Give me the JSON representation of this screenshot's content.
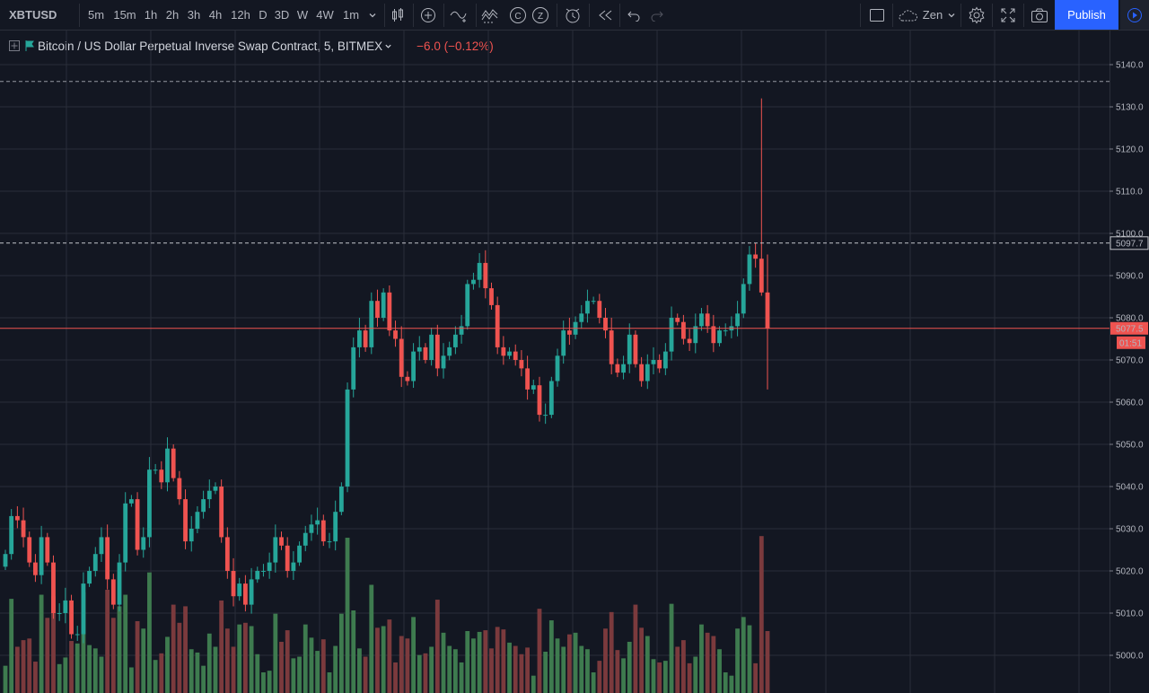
{
  "toolbar": {
    "symbol": "XBTUSD",
    "intervals": [
      "5m",
      "15m",
      "1h",
      "2h",
      "3h",
      "4h",
      "12h",
      "D",
      "3D",
      "W",
      "4W",
      "1m"
    ],
    "active_interval": "5m",
    "theme_label": "Zen",
    "publish_label": "Publish",
    "icons": [
      "chevron-down-icon",
      "candles-icon",
      "add-indicator-icon",
      "compare-icon",
      "indicators-icon",
      "c-icon",
      "z-icon",
      "alert-icon",
      "replay-icon",
      "undo-icon",
      "redo-icon",
      "layout-icon",
      "cloud-icon",
      "settings-icon",
      "fullscreen-icon",
      "camera-icon",
      "play-icon"
    ]
  },
  "legend": {
    "title": "Bitcoin / US Dollar Perpetual Inverse Swap Contract, 5, BITMEX",
    "change": "−6.0 (−0.12%)"
  },
  "colors": {
    "background": "#131722",
    "up": "#26a69a",
    "down": "#ef5350",
    "up_volume": "#3e7b4f",
    "down_volume": "#7b3a3d",
    "grid": "#2a2e39",
    "accent": "#2962ff"
  },
  "chart_data": {
    "type": "candlestick",
    "y_ticks": [
      "5140.0",
      "5130.0",
      "5120.0",
      "5110.0",
      "5100.0",
      "5090.0",
      "5080.0",
      "5070.0",
      "5060.0",
      "5050.0",
      "5040.0",
      "5030.0",
      "5020.0",
      "5010.0",
      "5000.0"
    ],
    "ylim": [
      4993,
      5148
    ],
    "price_line": 5077.5,
    "price_label": "5077.5",
    "countdown": "01:51",
    "high_line": 5097.7,
    "high_label": "5097.7",
    "dashed_top": 5136,
    "closes": [
      5024,
      5033,
      5032,
      5028,
      5022,
      5019,
      5028,
      5022,
      5010,
      5010,
      5013,
      5005,
      5005,
      5017,
      5020,
      5024,
      5028,
      5018,
      5012,
      5022,
      5036,
      5037,
      5025,
      5028,
      5044,
      5044,
      5041,
      5049,
      5042,
      5037,
      5027,
      5030,
      5034,
      5037,
      5039,
      5040,
      5028,
      5020,
      5014,
      5017,
      5012,
      5018,
      5020,
      5020,
      5022,
      5028,
      5026,
      5020,
      5022,
      5026,
      5029,
      5031,
      5032,
      5027,
      5027,
      5034,
      5040,
      5063,
      5073,
      5077,
      5073,
      5084,
      5080,
      5086,
      5077,
      5075,
      5066,
      5065,
      5072,
      5073,
      5070,
      5076,
      5068,
      5071,
      5073,
      5076,
      5078,
      5088,
      5089,
      5093,
      5087,
      5083,
      5073,
      5071,
      5072,
      5070,
      5068,
      5063,
      5064,
      5057,
      5057,
      5065,
      5071,
      5077,
      5076,
      5079,
      5081,
      5084,
      5084,
      5080,
      5077,
      5069,
      5067,
      5069,
      5076,
      5069,
      5065,
      5069,
      5070,
      5068,
      5072,
      5080,
      5079,
      5075,
      5074,
      5078,
      5081,
      5078,
      5074,
      5077,
      5077,
      5078,
      5081,
      5088,
      5095,
      5094,
      5086,
      5077.5
    ],
    "volume_range": [
      0,
      40
    ]
  }
}
